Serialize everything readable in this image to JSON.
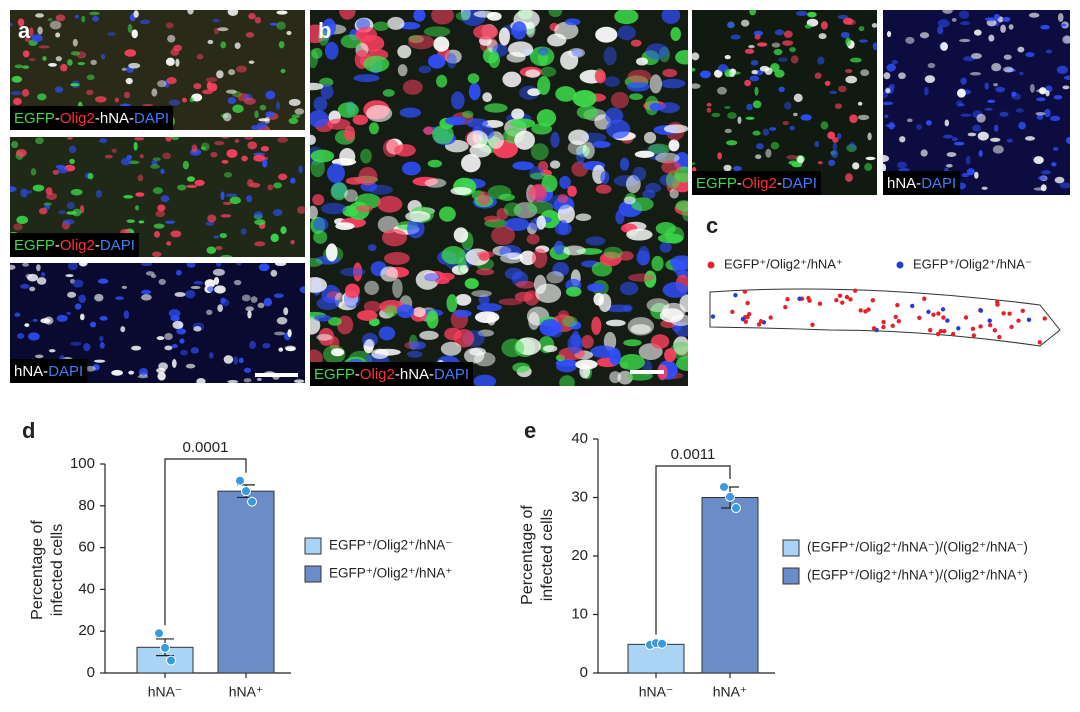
{
  "panel_labels": [
    "a",
    "b",
    "c",
    "d",
    "e"
  ],
  "images": [
    {
      "caption": [
        {
          "text": "EGFP",
          "color": "#3ddc4a"
        },
        {
          "text": "-",
          "color": "#ffffff"
        },
        {
          "text": "Olig2",
          "color": "#ff3030"
        },
        {
          "text": "-hNA-",
          "color": "#ffffff"
        },
        {
          "text": "DAPI",
          "color": "#3d7dff"
        }
      ]
    },
    {
      "caption": [
        {
          "text": "EGFP",
          "color": "#3ddc4a"
        },
        {
          "text": "-",
          "color": "#ffffff"
        },
        {
          "text": "Olig2",
          "color": "#ff3030"
        },
        {
          "text": "-",
          "color": "#ffffff"
        },
        {
          "text": "DAPI",
          "color": "#3d7dff"
        }
      ]
    },
    {
      "caption": [
        {
          "text": "hNA-",
          "color": "#ffffff"
        },
        {
          "text": "DAPI",
          "color": "#3d7dff"
        }
      ]
    },
    {
      "caption": [
        {
          "text": "EGFP",
          "color": "#3ddc4a"
        },
        {
          "text": "-",
          "color": "#ffffff"
        },
        {
          "text": "Olig2",
          "color": "#ff3030"
        },
        {
          "text": "-hNA-",
          "color": "#ffffff"
        },
        {
          "text": "DAPI",
          "color": "#3d7dff"
        }
      ]
    },
    {
      "caption": [
        {
          "text": "EGFP",
          "color": "#3ddc4a"
        },
        {
          "text": "-",
          "color": "#ffffff"
        },
        {
          "text": "Olig2",
          "color": "#ff3030"
        },
        {
          "text": "-",
          "color": "#ffffff"
        },
        {
          "text": "DAPI",
          "color": "#3d7dff"
        }
      ]
    },
    {
      "caption": [
        {
          "text": "hNA-",
          "color": "#ffffff"
        },
        {
          "text": "DAPI",
          "color": "#3d7dff"
        }
      ]
    }
  ],
  "map_legend": [
    {
      "text": "EGFP⁺/Olig2⁺/hNA⁺",
      "color": "#e8202a"
    },
    {
      "text": "EGFP⁺/Olig2⁺/hNA⁻",
      "color": "#1f3fd6"
    }
  ],
  "chart_data": [
    {
      "type": "bar",
      "ylabel": [
        "Percentage of",
        "infected cells"
      ],
      "categories": [
        "hNA⁻",
        "hNA⁺"
      ],
      "values": [
        12.3,
        87
      ],
      "errors": [
        4,
        3
      ],
      "points": [
        [
          19,
          12,
          6
        ],
        [
          92,
          87,
          82
        ]
      ],
      "colors": [
        "#a9d4f5",
        "#6b8cc7"
      ],
      "point_color": "#3a9ae0",
      "legend": [
        "EGFP⁺/Olig2⁺/hNA⁻",
        "EGFP⁺/Olig2⁺/hNA⁺"
      ],
      "significance": "0.0001",
      "ylim": [
        0,
        100
      ],
      "yticks": [
        0,
        20,
        40,
        60,
        80,
        100
      ]
    },
    {
      "type": "bar",
      "ylabel": [
        "Percentage of",
        "infected cells"
      ],
      "categories": [
        "hNA⁻",
        "hNA⁺"
      ],
      "values": [
        4.9,
        30
      ],
      "errors": [
        0.3,
        1.8
      ],
      "points": [
        [
          4.8,
          5.1,
          5.0
        ],
        [
          31.8,
          30.1,
          28.2
        ]
      ],
      "colors": [
        "#a9d4f5",
        "#6b8cc7"
      ],
      "point_color": "#3a9ae0",
      "legend": [
        "(EGFP⁺/Olig2⁺/hNA⁻)/(Olig2⁺/hNA⁻)",
        "(EGFP⁺/Olig2⁺/hNA⁺)/(Olig2⁺/hNA⁺)"
      ],
      "significance": "0.0011",
      "ylim": [
        0,
        40
      ],
      "yticks": [
        0,
        10,
        20,
        30,
        40
      ]
    }
  ]
}
